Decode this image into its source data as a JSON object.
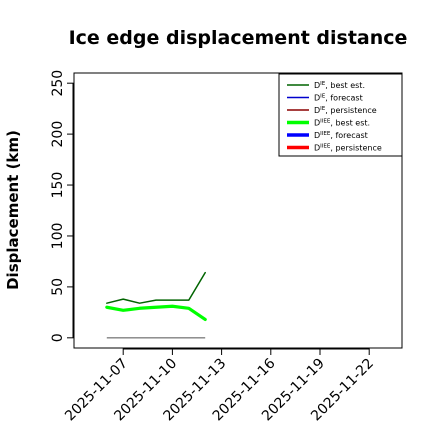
{
  "chart_data": {
    "type": "line",
    "title": "Ice edge displacement distance",
    "xlabel": "",
    "ylabel": "Displacement (km)",
    "ylim": [
      -10,
      260
    ],
    "yticks": [
      0,
      50,
      100,
      150,
      200,
      250
    ],
    "xlim": [
      "2025-11-04",
      "2025-11-24"
    ],
    "xticks": [
      {
        "date": "2025-11-07",
        "label": "2025-11-07",
        "color": "#000000"
      },
      {
        "date": "2025-11-10",
        "label": "2025-11-10",
        "color": "#000000"
      },
      {
        "date": "2025-11-13",
        "label": "2025-11-13",
        "color": "#228B22"
      },
      {
        "date": "2025-11-16",
        "label": "2025-11-16",
        "color": "#000000"
      },
      {
        "date": "2025-11-19",
        "label": "2025-11-19",
        "color": "#000000"
      },
      {
        "date": "2025-11-22",
        "label": "2025-11-22",
        "color": "#000000"
      }
    ],
    "grid": false,
    "legend_position": "top-right",
    "series": [
      {
        "name": "D^IE, best est.",
        "legend_base": "D",
        "legend_sup": "IE",
        "legend_suffix": ", best est.",
        "color": "#006400",
        "width": "thin",
        "x": [
          "2025-11-06",
          "2025-11-07",
          "2025-11-08",
          "2025-11-09",
          "2025-11-10",
          "2025-11-11",
          "2025-11-12"
        ],
        "y": [
          34,
          38,
          34,
          37,
          37,
          37,
          64
        ]
      },
      {
        "name": "D^IE, forecast",
        "legend_base": "D",
        "legend_sup": "IE",
        "legend_suffix": ", forecast",
        "color": "#0000CD",
        "width": "thin",
        "x": [],
        "y": []
      },
      {
        "name": "D^IE, persistence",
        "legend_base": "D",
        "legend_sup": "IE",
        "legend_suffix": ", persistence",
        "color": "#8B0000",
        "width": "thin",
        "x": [],
        "y": []
      },
      {
        "name": "D^IIEE, best est.",
        "legend_base": "D",
        "legend_sup": "IIEE",
        "legend_suffix": ", best est.",
        "color": "#00FF00",
        "width": "thick",
        "x": [
          "2025-11-06",
          "2025-11-07",
          "2025-11-08",
          "2025-11-09",
          "2025-11-10",
          "2025-11-11",
          "2025-11-12"
        ],
        "y": [
          30,
          27,
          29,
          30,
          31,
          29,
          18
        ]
      },
      {
        "name": "D^IIEE, forecast",
        "legend_base": "D",
        "legend_sup": "IIEE",
        "legend_suffix": ", forecast",
        "color": "#0000FF",
        "width": "thick",
        "x": [],
        "y": []
      },
      {
        "name": "D^IIEE, persistence",
        "legend_base": "D",
        "legend_sup": "IIEE",
        "legend_suffix": ", persistence",
        "color": "#FF0000",
        "width": "thick",
        "x": [],
        "y": []
      }
    ],
    "reference_line": {
      "color": "#808080",
      "x": [
        "2025-11-06",
        "2025-11-12"
      ],
      "y": [
        0,
        0
      ]
    }
  }
}
